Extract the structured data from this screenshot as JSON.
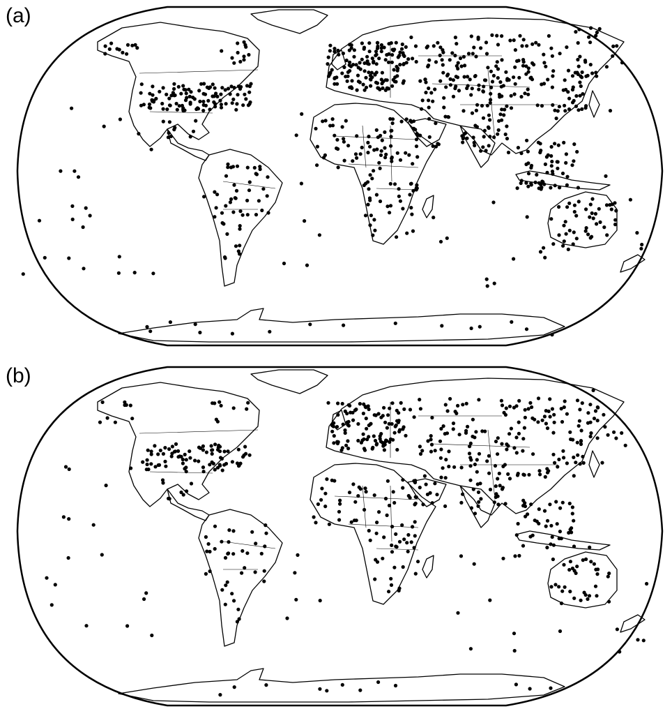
{
  "figure": {
    "panels": [
      {
        "label": "(a)",
        "key": "a"
      },
      {
        "label": "(b)",
        "key": "b"
      }
    ]
  },
  "colors": {
    "ink": "#000000",
    "background": "#ffffff"
  },
  "icons": {
    "station_marker": "filled-circle"
  }
}
